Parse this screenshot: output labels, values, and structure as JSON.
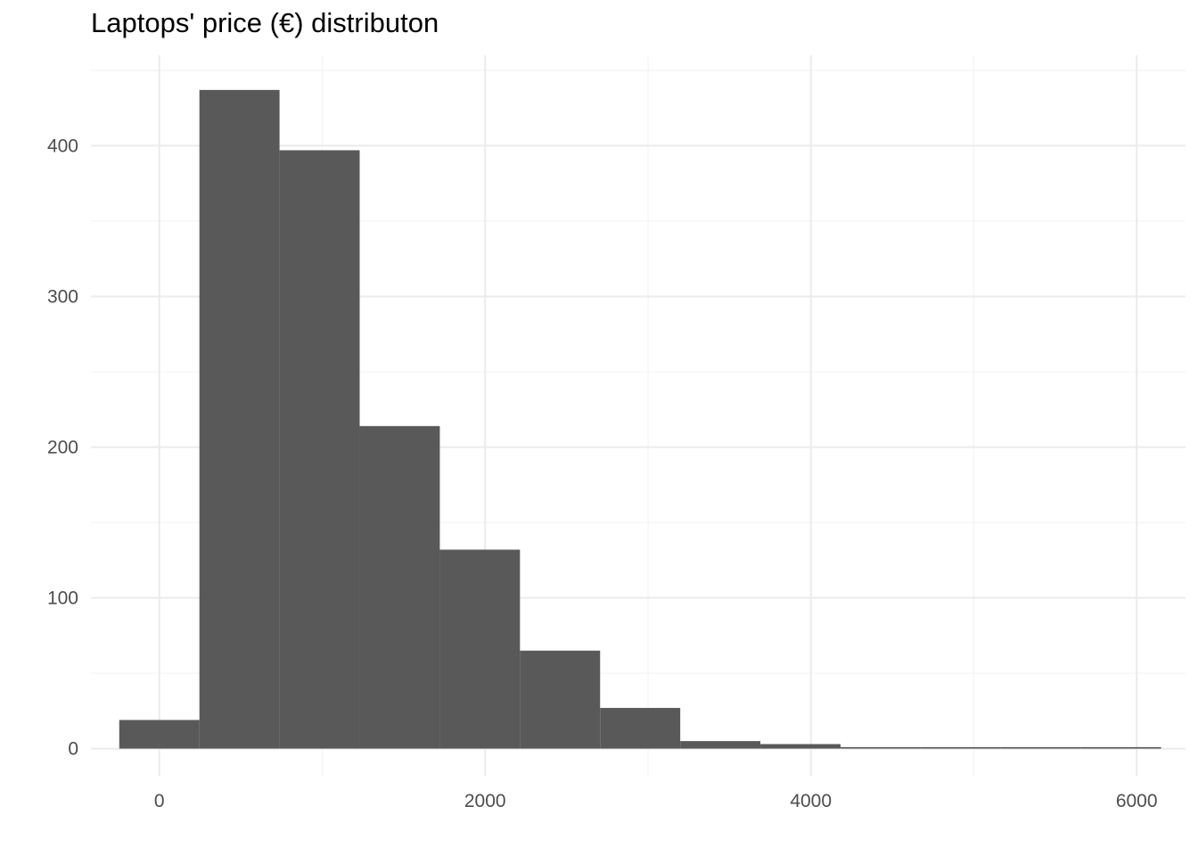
{
  "chart_data": {
    "type": "bar",
    "title": "Laptops' price (€) distributon",
    "xlabel": "",
    "ylabel": "",
    "xlim": [
      -420,
      6300
    ],
    "ylim": [
      -18,
      460
    ],
    "x_ticks": [
      {
        "value": 0,
        "label": "0"
      },
      {
        "value": 2000,
        "label": "2000"
      },
      {
        "value": 4000,
        "label": "4000"
      },
      {
        "value": 6000,
        "label": "6000"
      }
    ],
    "x_minor_ticks": [
      1000,
      3000,
      5000
    ],
    "y_ticks": [
      {
        "value": 0,
        "label": "0"
      },
      {
        "value": 100,
        "label": "100"
      },
      {
        "value": 200,
        "label": "200"
      },
      {
        "value": 300,
        "label": "300"
      },
      {
        "value": 400,
        "label": "400"
      }
    ],
    "y_minor_ticks": [
      50,
      150,
      250,
      350,
      450
    ],
    "bins": [
      {
        "x0": -246,
        "x1": 246,
        "count": 19
      },
      {
        "x0": 246,
        "x1": 738,
        "count": 437
      },
      {
        "x0": 738,
        "x1": 1230,
        "count": 397
      },
      {
        "x0": 1230,
        "x1": 1722,
        "count": 214
      },
      {
        "x0": 1722,
        "x1": 2214,
        "count": 132
      },
      {
        "x0": 2214,
        "x1": 2706,
        "count": 65
      },
      {
        "x0": 2706,
        "x1": 3198,
        "count": 27
      },
      {
        "x0": 3198,
        "x1": 3690,
        "count": 5
      },
      {
        "x0": 3690,
        "x1": 4182,
        "count": 3
      },
      {
        "x0": 4182,
        "x1": 4674,
        "count": 1
      },
      {
        "x0": 4674,
        "x1": 5166,
        "count": 1
      },
      {
        "x0": 5166,
        "x1": 5658,
        "count": 1
      },
      {
        "x0": 5658,
        "x1": 6150,
        "count": 1
      }
    ],
    "bar_color": "#595959",
    "grid": true,
    "grid_major_color": "#ebebeb",
    "grid_minor_color": "#f3f3f3",
    "legend": "none"
  }
}
